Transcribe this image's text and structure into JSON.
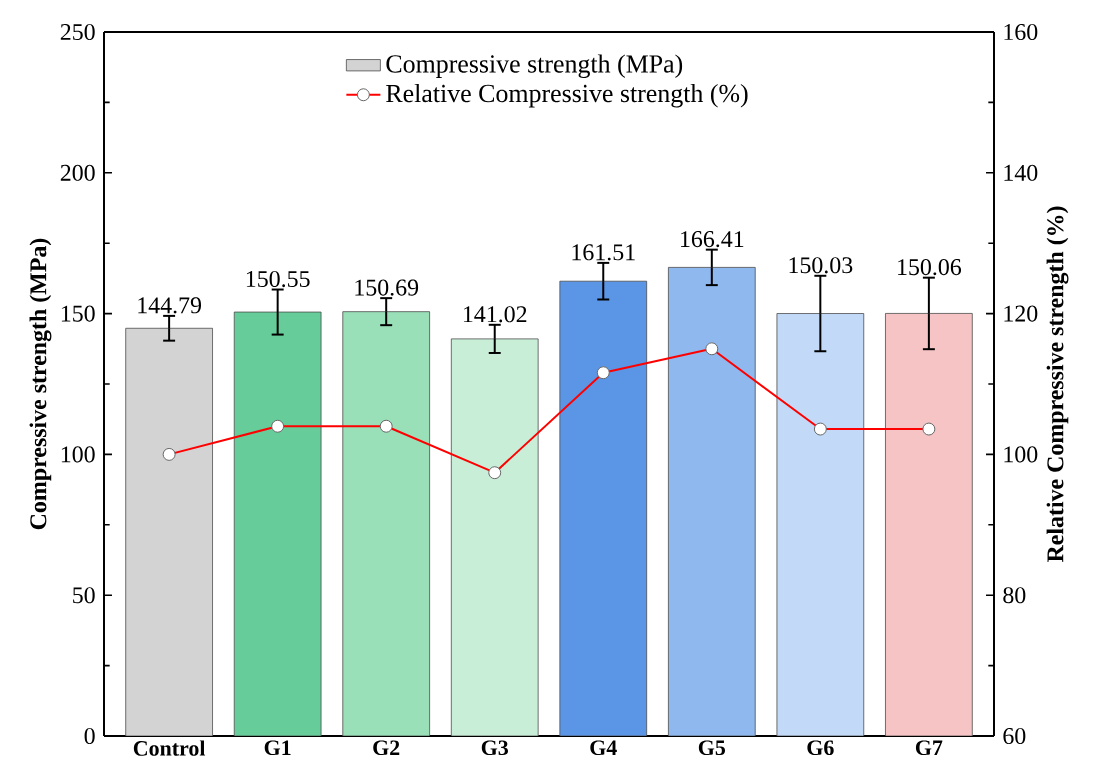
{
  "chart_data": {
    "type": "bar",
    "categories": [
      "Control",
      "G1",
      "G2",
      "G3",
      "G4",
      "G5",
      "G6",
      "G7"
    ],
    "ylabel": "Compressive strength (MPa)",
    "y2label": "Relative Compressive strength (%)",
    "ylim": [
      0,
      250
    ],
    "yticks": [
      0,
      50,
      100,
      150,
      200,
      250
    ],
    "y2lim": [
      60,
      160
    ],
    "y2ticks": [
      60,
      80,
      100,
      120,
      140,
      160
    ],
    "series": [
      {
        "name": "Compressive strength (MPa)",
        "colors": [
          "#d3d3d3",
          "#66cc99",
          "#99dfb8",
          "#c8eed8",
          "#5b95e6",
          "#8fb8ee",
          "#c2daf7",
          "#f6c4c4"
        ],
        "values": [
          144.79,
          150.55,
          150.69,
          141.02,
          161.51,
          166.41,
          150.03,
          150.06
        ],
        "errors": [
          4.4,
          8,
          4.8,
          5,
          6.5,
          6.3,
          13.4,
          12.7
        ],
        "value_labels": [
          "144.79",
          "150.55",
          "150.69",
          "141.02",
          "161.51",
          "166.41",
          "150.03",
          "150.06"
        ]
      },
      {
        "name": "Relative Compressive strength (%)",
        "type": "line",
        "axis": "y2",
        "color": "#ff0000",
        "marker": "circle",
        "values": [
          100,
          104,
          104,
          97.4,
          111.6,
          115,
          103.6,
          103.6
        ]
      }
    ],
    "grid": false,
    "legend": "top"
  }
}
